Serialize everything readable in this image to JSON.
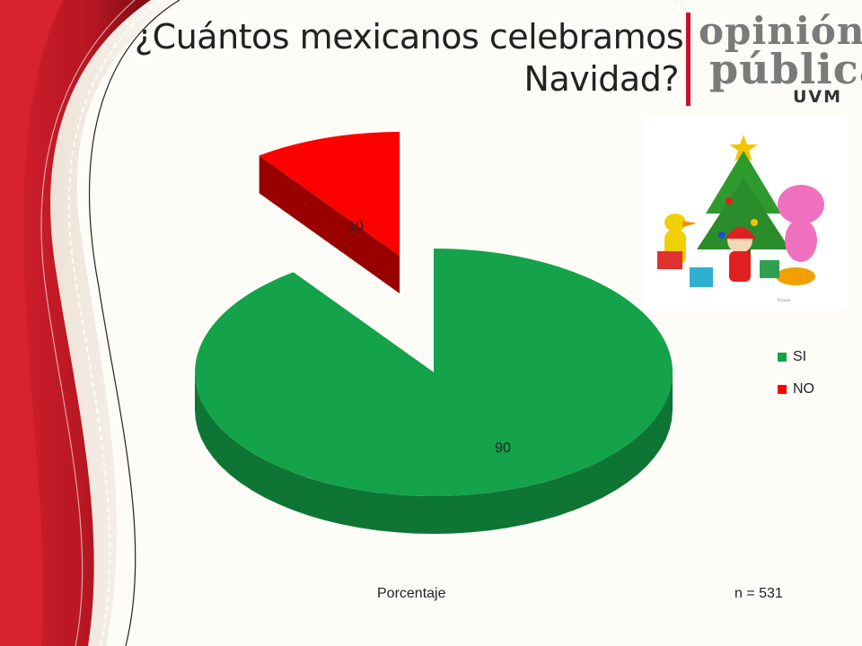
{
  "slide": {
    "title_line1": "¿Cuántos mexicanos celebramos",
    "title_line2": "Navidad?",
    "porcentaje_label": "Porcentaje",
    "n_label": "n = 531"
  },
  "logo": {
    "line1": "opinión",
    "line2": "pública",
    "line3": "UVM",
    "accent_color": "#c8102e"
  },
  "chart_data": {
    "type": "pie",
    "style": "3d-exploded",
    "categories": [
      "SI",
      "NO"
    ],
    "values": [
      90,
      10
    ],
    "colors": [
      "#14a34a",
      "#ff0000"
    ],
    "data_labels": [
      "90",
      "10"
    ],
    "legend_position": "right"
  }
}
